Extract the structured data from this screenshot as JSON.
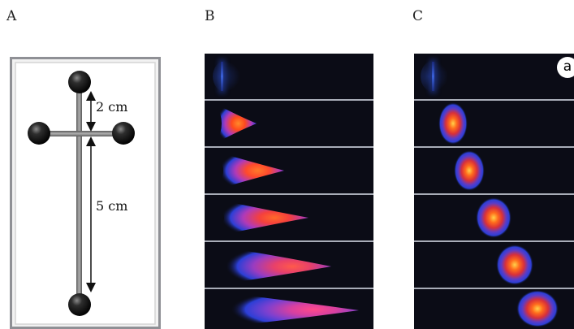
{
  "panel_labels": {
    "a": "A",
    "b": "B",
    "c": "C"
  },
  "device": {
    "spacing_short": "2 cm",
    "spacing_long": "5 cm"
  },
  "panel_c_badge": "a",
  "colors": {
    "frame": "#8f9095",
    "plate": "#f2f2f2",
    "rod": "#7a7a7a",
    "dark_background": "#0b0c16",
    "intensity_low": "#2c3fd6",
    "intensity_mid": "#b03ab8",
    "intensity_high": "#ff4a1c",
    "intensity_peak": "#ff8a2a"
  },
  "icons": {
    "sphere": "black-sphere-electrode-icon",
    "arrow": "double-headed-arrow-icon"
  }
}
